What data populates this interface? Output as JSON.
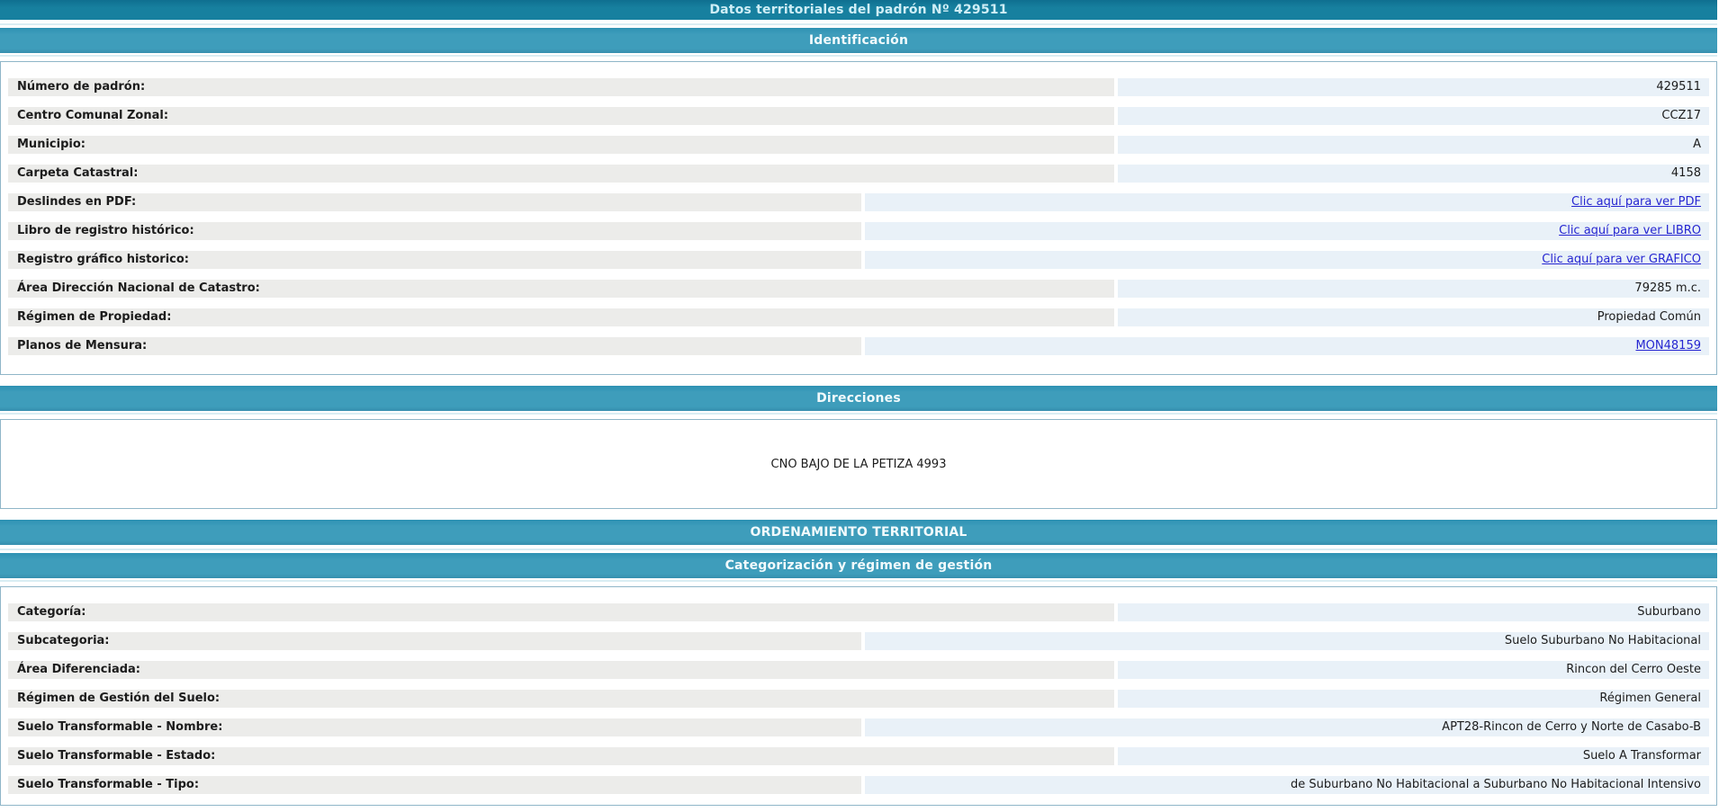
{
  "page": {
    "title": "Datos territoriales del padrón Nº 429511"
  },
  "colors": {
    "title_bar_bg": "#17809f",
    "section_bar_bg": "#3e9dbb",
    "header_text": "#f1fafc",
    "label_strip_bg": "#ececea",
    "value_strip_bg": "#e9f1f8",
    "link_color": "#2626d1",
    "box_border": "#8fb6c8",
    "text_color": "#1c1c1c"
  },
  "sections": {
    "identificacion": {
      "header": "Identificación",
      "rows": [
        {
          "label": "Número de padrón:",
          "value": "429511",
          "link": false,
          "wide": false
        },
        {
          "label": "Centro Comunal Zonal:",
          "value": "CCZ17",
          "link": false,
          "wide": false
        },
        {
          "label": "Municipio:",
          "value": "A",
          "link": false,
          "wide": false
        },
        {
          "label": "Carpeta Catastral:",
          "value": "4158",
          "link": false,
          "wide": false
        },
        {
          "label": "Deslindes en PDF:",
          "value": "Clic aquí para ver PDF",
          "link": true,
          "wide": true
        },
        {
          "label": "Libro de registro histórico:",
          "value": "Clic aquí para ver LIBRO",
          "link": true,
          "wide": true
        },
        {
          "label": "Registro gráfico historico:",
          "value": "Clic aquí para ver GRAFICO",
          "link": true,
          "wide": true
        },
        {
          "label": "Área Dirección Nacional de Catastro:",
          "value": "79285 m.c.",
          "link": false,
          "wide": false
        },
        {
          "label": "Régimen de Propiedad:",
          "value": "Propiedad Común",
          "link": false,
          "wide": false
        },
        {
          "label": "Planos de Mensura:",
          "value": "MON48159",
          "link": true,
          "wide": true
        }
      ]
    },
    "direcciones": {
      "header": "Direcciones",
      "address": "CNO BAJO DE LA PETIZA 4993"
    },
    "ordenamiento": {
      "header": "ORDENAMIENTO TERRITORIAL"
    },
    "categorizacion": {
      "header": "Categorización y régimen de gestión",
      "rows": [
        {
          "label": "Categoría:",
          "value": "Suburbano",
          "link": false,
          "wide": false
        },
        {
          "label": "Subcategoria:",
          "value": "Suelo Suburbano No Habitacional",
          "link": false,
          "wide": true
        },
        {
          "label": "Área Diferenciada:",
          "value": "Rincon del Cerro Oeste",
          "link": false,
          "wide": false
        },
        {
          "label": "Régimen de Gestión del Suelo:",
          "value": "Régimen General",
          "link": false,
          "wide": false
        },
        {
          "label": "Suelo Transformable - Nombre:",
          "value": "APT28-Rincon de Cerro y Norte de Casabo-B",
          "link": false,
          "wide": true
        },
        {
          "label": "Suelo Transformable - Estado:",
          "value": "Suelo A Transformar",
          "link": false,
          "wide": false
        },
        {
          "label": "Suelo Transformable - Tipo:",
          "value": "de Suburbano No Habitacional a Suburbano No Habitacional Intensivo",
          "link": false,
          "wide": true
        }
      ]
    }
  }
}
